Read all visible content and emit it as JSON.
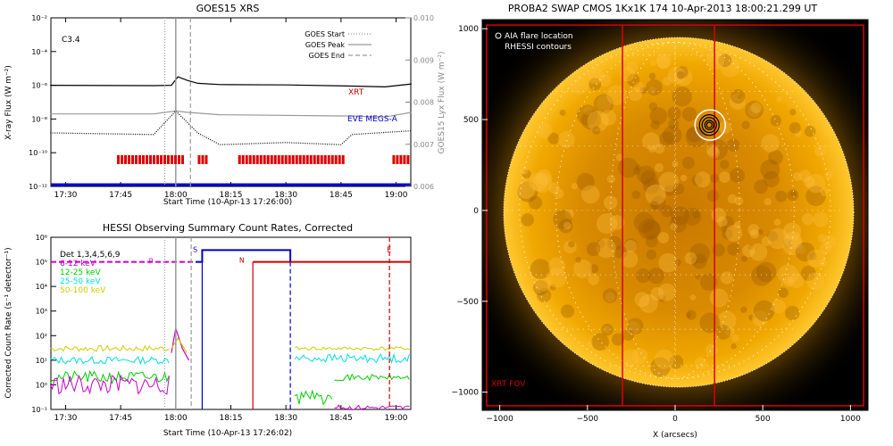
{
  "chart_data": [
    {
      "type": "line",
      "title": "GOES15 XRS",
      "xlabel": "Start Time (10-Apr-13 17:26:00)",
      "ylabel": "X-ray Flux (W m⁻²)",
      "y2label": "GOES15 Lyx Flux (W m⁻²)",
      "xlim": [
        "17:26",
        "19:04"
      ],
      "xticks": [
        "17:30",
        "17:45",
        "18:00",
        "18:15",
        "18:30",
        "18:45",
        "19:00"
      ],
      "yscale": "log",
      "ylim": [
        1e-12,
        0.01
      ],
      "yticks": [
        "10⁻¹²",
        "10⁻¹⁰",
        "10⁻⁸",
        "10⁻⁶",
        "10⁻⁴",
        "10⁻²"
      ],
      "y2lim": [
        0.006,
        0.01
      ],
      "y2ticks": [
        "0.006",
        "0.007",
        "0.008",
        "0.009",
        "0.010"
      ],
      "flare_class": "C3.4",
      "legend": [
        {
          "name": "GOES Start",
          "style": "dotted",
          "time": "17:57"
        },
        {
          "name": "GOES Peak",
          "style": "solid",
          "time": "18:00"
        },
        {
          "name": "GOES End",
          "style": "dashed",
          "time": "18:04"
        }
      ],
      "series": [
        {
          "name": "",
          "color": "#000000",
          "values": [
            [
              17.43,
              1e-06
            ],
            [
              17.9,
              9.5e-07
            ],
            [
              17.98,
              1e-06
            ],
            [
              18.01,
              3.2e-06
            ],
            [
              18.05,
              2e-06
            ],
            [
              18.1,
              1.3e-06
            ],
            [
              18.2,
              1.1e-06
            ],
            [
              18.5,
              1.05e-06
            ],
            [
              18.8,
              9e-07
            ],
            [
              18.95,
              8e-07
            ],
            [
              19.07,
              1.2e-06
            ]
          ]
        },
        {
          "name": "",
          "color": "#999999",
          "values": [
            [
              17.43,
              2e-08
            ],
            [
              17.9,
              2e-08
            ],
            [
              18.0,
              3e-08
            ],
            [
              18.05,
              2.5e-08
            ],
            [
              18.2,
              1.8e-08
            ],
            [
              18.8,
              1.5e-08
            ],
            [
              18.95,
              1.3e-08
            ],
            [
              19.07,
              2.5e-08
            ]
          ]
        },
        {
          "name": "",
          "color": "#000000",
          "style": "dotted",
          "values": [
            [
              17.43,
              1.5e-09
            ],
            [
              17.9,
              1.2e-09
            ],
            [
              18.0,
              3e-08
            ],
            [
              18.1,
              1.5e-09
            ],
            [
              18.2,
              3e-10
            ],
            [
              18.5,
              4e-10
            ],
            [
              18.75,
              3e-10
            ],
            [
              18.8,
              1.2e-09
            ],
            [
              19.07,
              2e-09
            ]
          ]
        }
      ],
      "labels": [
        {
          "text": "XRT",
          "color": "#c00000"
        },
        {
          "text": "EVE MEGS-A",
          "color": "#0000cc"
        }
      ],
      "xrt_bars": [
        [
          "17:44",
          "18:02"
        ],
        [
          "18:06",
          "18:08"
        ],
        [
          "18:17",
          "18:46"
        ],
        [
          "18:59",
          "19:03"
        ]
      ]
    },
    {
      "type": "line",
      "title": "HESSI Observing Summary Count Rates, Corrected",
      "xlabel": "Start Time (10-Apr-13 17:26:02)",
      "ylabel": "Corrected Count Rate (s⁻¹ detector⁻¹)",
      "xlim": [
        "17:26",
        "19:04"
      ],
      "xticks": [
        "17:30",
        "17:45",
        "18:00",
        "18:15",
        "18:30",
        "18:45",
        "19:00"
      ],
      "yscale": "log",
      "ylim": [
        0.1,
        1000000.0
      ],
      "yticks": [
        "10⁻¹",
        "10⁰",
        "10¹",
        "10²",
        "10³",
        "10⁴",
        "10⁵",
        "10⁶"
      ],
      "legend": [
        {
          "name": "Det 1,3,4,5,6,9",
          "color": "#000000"
        },
        {
          "name": "6-12 keV",
          "color": "#cc00cc"
        },
        {
          "name": "12-25 keV",
          "color": "#00cc00"
        },
        {
          "name": "25-50 keV",
          "color": "#00dddd"
        },
        {
          "name": "50-100 keV",
          "color": "#cccc00"
        }
      ],
      "flags": [
        {
          "text": "P",
          "color": "#cc00cc"
        },
        {
          "text": "S",
          "color": "#0000cc"
        },
        {
          "text": "N",
          "color": "#c00000"
        },
        {
          "text": "E",
          "color": "#c00000"
        }
      ]
    },
    {
      "type": "image",
      "title": "PROBA2 SWAP CMOS 1Kx1K 174 10-Apr-2013 18:00:21.299 UT",
      "xlabel": "X (arcsecs)",
      "ylabel": "",
      "xlim": [
        -1100,
        1100
      ],
      "ylim": [
        -1100,
        1050
      ],
      "xticks": [
        "−1000",
        "−500",
        "0",
        "500",
        "1000"
      ],
      "yticks": [
        "−1000",
        "−500",
        "0",
        "500",
        "1000"
      ],
      "legend": [
        {
          "name": "AIA flare location",
          "color": "#ffffff"
        },
        {
          "name": "RHESSI contours",
          "color": "#000000"
        }
      ],
      "flare_location": [
        140,
        470
      ],
      "sun_radius": 960,
      "xrt_fov_label": "XRT FOV",
      "xrt_fov": [
        [
          -1075,
          -1075
        ],
        [
          1075,
          1020
        ]
      ],
      "fov_lines_x": [
        -300,
        225
      ]
    }
  ]
}
